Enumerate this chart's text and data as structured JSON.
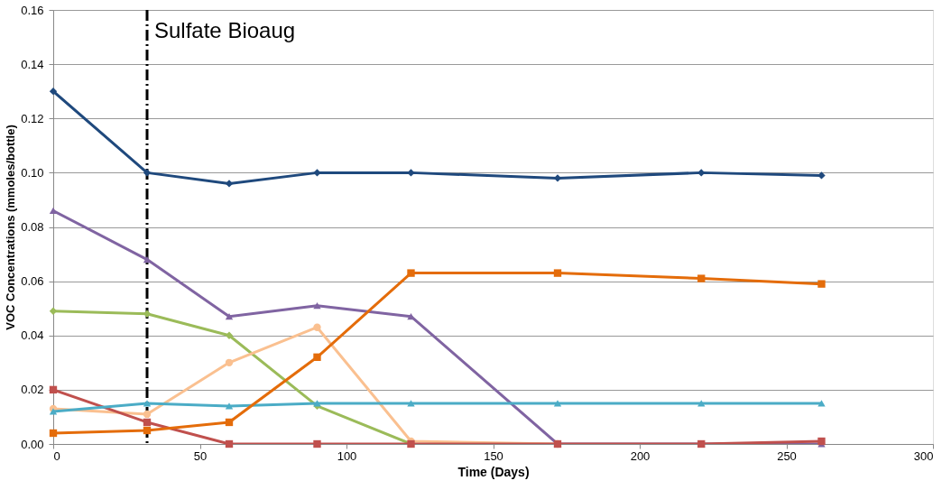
{
  "chart_data": {
    "type": "line",
    "xlabel": "Time (Days)",
    "ylabel": "VOC Concentrations (mmoles/bottle)",
    "xlim": [
      0,
      300
    ],
    "xticks": [
      0,
      50,
      100,
      150,
      200,
      250,
      300
    ],
    "ylim": [
      0,
      0.16
    ],
    "yticks": [
      {
        "value": 0,
        "label": "0.00"
      },
      {
        "value": 0.02,
        "label": "0.02"
      },
      {
        "value": 0.04,
        "label": "0.04"
      },
      {
        "value": 0.06,
        "label": "0.06"
      },
      {
        "value": 0.08,
        "label": "0.08"
      },
      {
        "value": 0.1,
        "label": "0.10"
      },
      {
        "value": 0.12,
        "label": "0.12"
      },
      {
        "value": 0.14,
        "label": "0.14"
      },
      {
        "value": 0.16,
        "label": "0.16"
      }
    ],
    "grid": "y",
    "line_style": "solid",
    "ref_lines": [
      {
        "axis": "x",
        "value": 32,
        "label": "Sulfate Bioaug",
        "color": "#000000",
        "line_style": "dashdot"
      }
    ],
    "series": [
      {
        "color": "#1f497d",
        "marker": "diamond",
        "x": [
          0,
          32,
          60,
          90,
          122,
          172,
          221,
          262
        ],
        "values": [
          0.13,
          0.1,
          0.096,
          0.1,
          0.1,
          0.098,
          0.1,
          0.099
        ]
      },
      {
        "color": "#8064a2",
        "marker": "triangle",
        "x": [
          0,
          32,
          60,
          90,
          122,
          172,
          221,
          262
        ],
        "values": [
          0.086,
          0.068,
          0.047,
          0.051,
          0.047,
          0.0,
          0.0,
          0.0
        ]
      },
      {
        "color": "#9bbb59",
        "marker": "diamond",
        "x": [
          0,
          32,
          60,
          90,
          122
        ],
        "values": [
          0.049,
          0.048,
          0.04,
          0.014,
          0.0
        ]
      },
      {
        "color": "#fac090",
        "marker": "circle",
        "x": [
          0,
          32,
          60,
          90,
          122,
          172
        ],
        "values": [
          0.013,
          0.011,
          0.03,
          0.043,
          0.001,
          0.0
        ]
      },
      {
        "color": "#c0504d",
        "marker": "square",
        "x": [
          0,
          32,
          60,
          90,
          122,
          172,
          221,
          262
        ],
        "values": [
          0.02,
          0.008,
          0.0,
          0.0,
          0.0,
          0.0,
          0.0,
          0.001
        ]
      },
      {
        "color": "#4bacc6",
        "marker": "triangle",
        "x": [
          0,
          32,
          60,
          90,
          122,
          172,
          221,
          262
        ],
        "values": [
          0.012,
          0.015,
          0.014,
          0.015,
          0.015,
          0.015,
          0.015,
          0.015
        ]
      },
      {
        "color": "#e46c0a",
        "marker": "square",
        "x": [
          0,
          32,
          60,
          90,
          122,
          172,
          221,
          262
        ],
        "values": [
          0.004,
          0.005,
          0.008,
          0.032,
          0.063,
          0.063,
          0.061,
          0.059
        ]
      }
    ]
  }
}
